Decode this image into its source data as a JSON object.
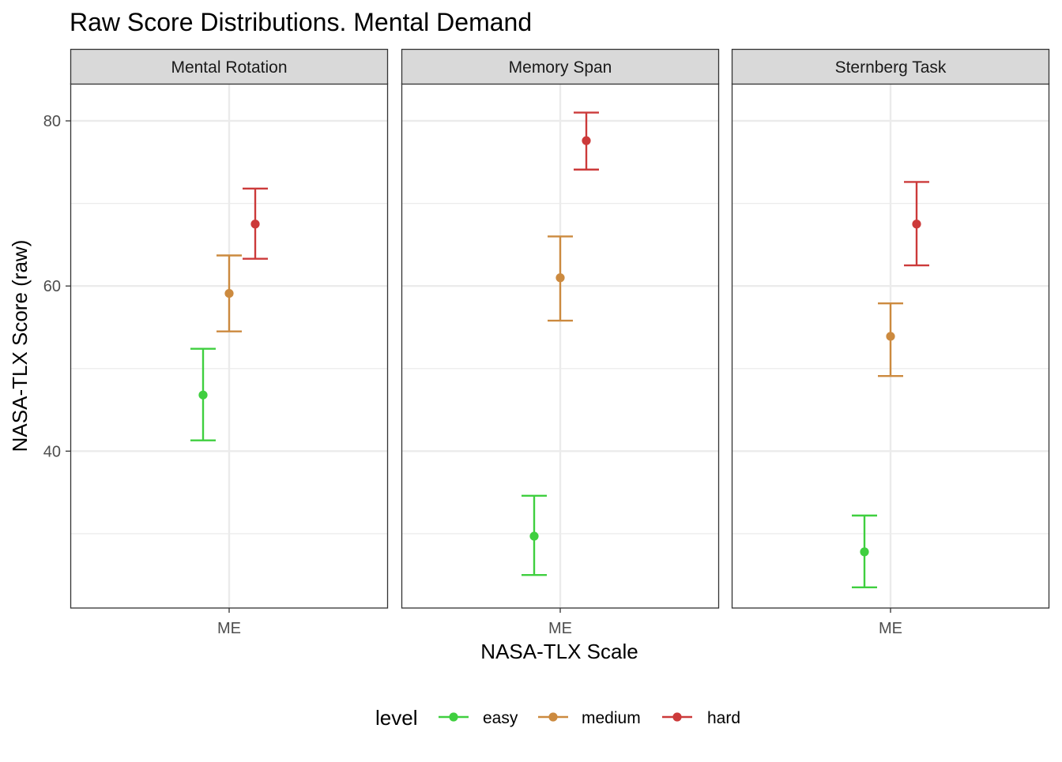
{
  "chart_data": {
    "type": "scatter",
    "title": "Raw Score Distributions. Mental Demand",
    "xlabel": "NASA-TLX Scale",
    "ylabel": "NASA-TLX Score (raw)",
    "ylim": [
      21,
      84.5
    ],
    "y_ticks": [
      40,
      60,
      80
    ],
    "y_tick_labels": [
      "40",
      "60",
      "80"
    ],
    "grid": true,
    "legend": {
      "title": "level",
      "position": "bottom",
      "entries": [
        "easy",
        "medium",
        "hard"
      ]
    },
    "colors": {
      "easy": "#3fcf3f",
      "medium": "#cc8a3f",
      "hard": "#cc3a3a"
    },
    "facets": [
      {
        "label": "Mental Rotation",
        "categories": [
          "ME"
        ],
        "series": [
          {
            "name": "easy",
            "mean": 46.8,
            "low": 41.3,
            "high": 52.4
          },
          {
            "name": "medium",
            "mean": 59.1,
            "low": 54.5,
            "high": 63.7
          },
          {
            "name": "hard",
            "mean": 67.5,
            "low": 63.3,
            "high": 71.8
          }
        ]
      },
      {
        "label": "Memory Span",
        "categories": [
          "ME"
        ],
        "series": [
          {
            "name": "easy",
            "mean": 29.7,
            "low": 25.0,
            "high": 34.6
          },
          {
            "name": "medium",
            "mean": 61.0,
            "low": 55.8,
            "high": 66.0
          },
          {
            "name": "hard",
            "mean": 77.6,
            "low": 74.1,
            "high": 81.0
          }
        ]
      },
      {
        "label": "Sternberg Task",
        "categories": [
          "ME"
        ],
        "series": [
          {
            "name": "easy",
            "mean": 27.8,
            "low": 23.5,
            "high": 32.2
          },
          {
            "name": "medium",
            "mean": 53.9,
            "low": 49.1,
            "high": 57.9
          },
          {
            "name": "hard",
            "mean": 67.5,
            "low": 62.5,
            "high": 72.6
          }
        ]
      }
    ]
  }
}
